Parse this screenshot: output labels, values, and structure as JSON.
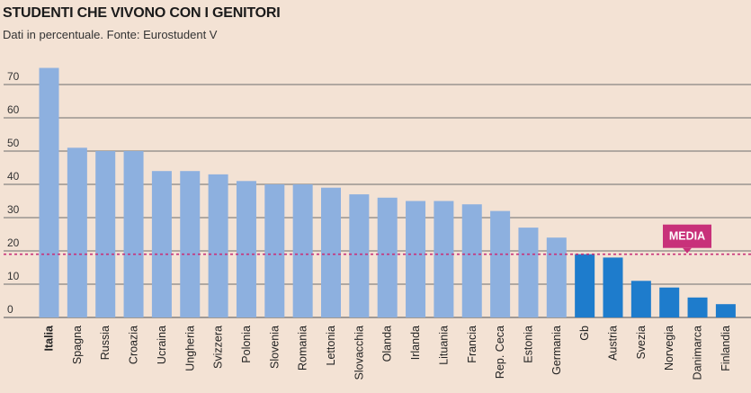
{
  "header": {
    "title": "STUDENTI CHE VIVONO CON I GENITORI",
    "subtitle": "Dati in percentuale. Fonte: Eurostudent V"
  },
  "chart_data": {
    "type": "bar",
    "title": "STUDENTI CHE VIVONO CON I GENITORI",
    "subtitle": "Dati in percentuale. Fonte: Eurostudent V",
    "categories": [
      "Italia",
      "Spagna",
      "Russia",
      "Croazia",
      "Ucraina",
      "Ungheria",
      "Svizzera",
      "Polonia",
      "Slovenia",
      "Romania",
      "Lettonia",
      "Slovacchia",
      "Olanda",
      "Irlanda",
      "Lituania",
      "Francia",
      "Rep. Ceca",
      "Estonia",
      "Germania",
      "Gb",
      "Austria",
      "Svezia",
      "Norvegia",
      "Danimarca",
      "Finlandia"
    ],
    "values": [
      75,
      51,
      50,
      50,
      44,
      44,
      43,
      41,
      40,
      40,
      39,
      37,
      36,
      35,
      35,
      34,
      32,
      27,
      24,
      19,
      18,
      11,
      9,
      6,
      4
    ],
    "highlight_category": "Italia",
    "below_average_from_index": 19,
    "average": {
      "label": "MEDIA",
      "value": 19
    },
    "yticks": [
      0,
      10,
      20,
      30,
      40,
      50,
      60,
      70
    ],
    "ylim": [
      0,
      80
    ],
    "xlabel": "",
    "ylabel": "",
    "grid": true,
    "colors": {
      "bar": "#8db0df",
      "bar_below_average": "#1e7ccc",
      "average_line": "#c8317a",
      "gridline": "#6e6e6e",
      "background": "#f3e2d4"
    }
  }
}
